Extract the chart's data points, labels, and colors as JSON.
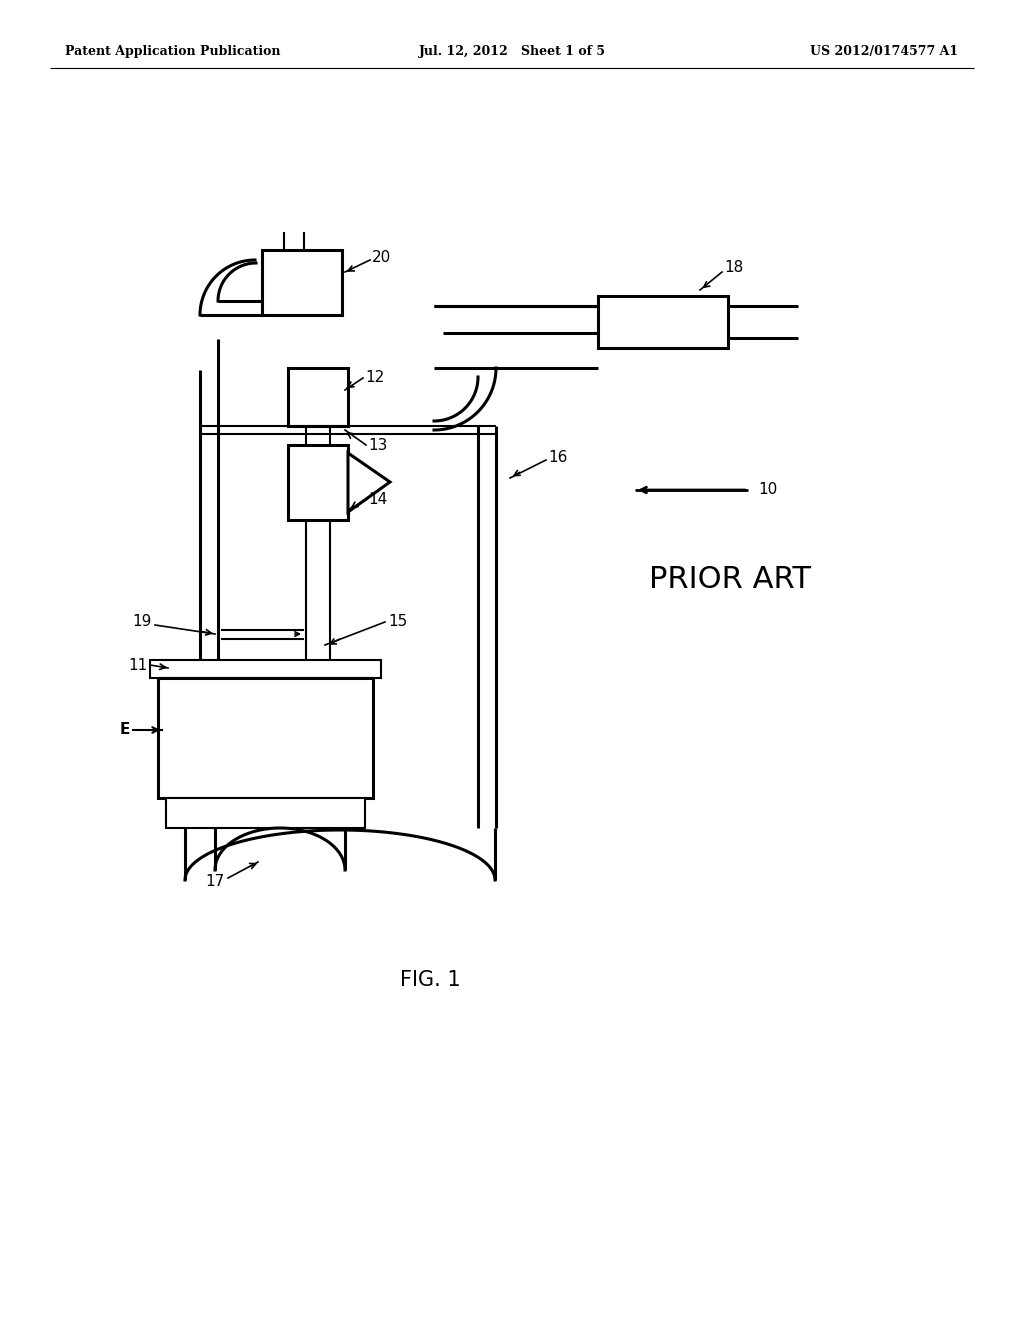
{
  "bg": "#ffffff",
  "lc": "#000000",
  "header_left": "Patent Application Publication",
  "header_center": "Jul. 12, 2012   Sheet 1 of 5",
  "header_right": "US 2012/0174577 A1",
  "fig_caption": "FIG. 1",
  "prior_art": "PRIOR ART",
  "lw_main": 2.2,
  "lw_thin": 1.5,
  "label_fs": 11
}
